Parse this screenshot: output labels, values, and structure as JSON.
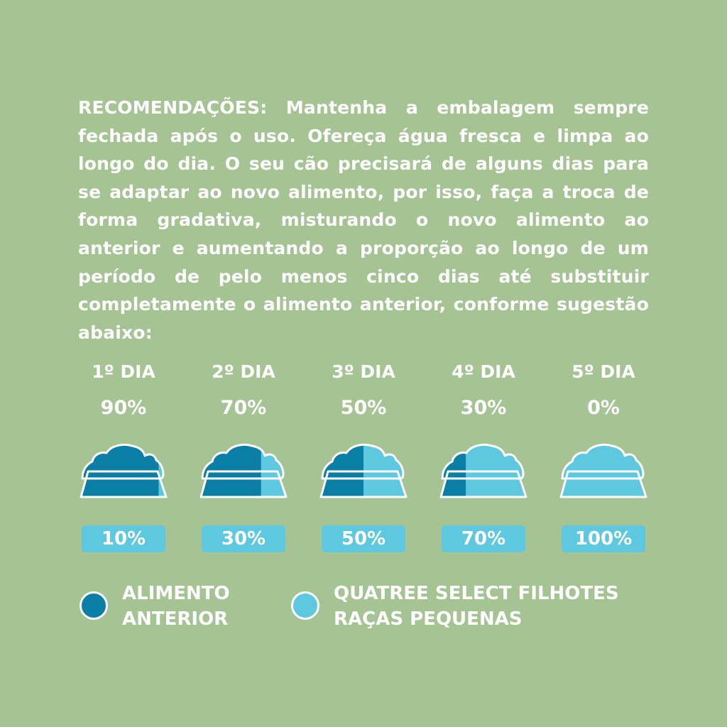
{
  "intro_text": "RECOMENDAÇÕES: Mantenha a embalagem sempre fechada após o uso. Ofereça água fresca e limpa ao longo do dia. O seu cão precisará de alguns dias para se adaptar ao novo alimento, por isso, faça a troca de forma gradativa, misturando o novo alimento ao anterior e aumentando a proporção ao longo de um período de pelo menos cinco dias até substituir completamente o alimento anterior, conforme sugestão abaixo:",
  "colors": {
    "background": "#a6c394",
    "previous_food": "#0b7ea6",
    "new_food": "#5ec8e0",
    "outline": "#ffffff"
  },
  "days": [
    {
      "label": "1º DIA",
      "previous_pct": "90%",
      "new_pct": "10%",
      "new_fraction": 0.1
    },
    {
      "label": "2º DIA",
      "previous_pct": "70%",
      "new_pct": "30%",
      "new_fraction": 0.3
    },
    {
      "label": "3º DIA",
      "previous_pct": "50%",
      "new_pct": "50%",
      "new_fraction": 0.5
    },
    {
      "label": "4º DIA",
      "previous_pct": "30%",
      "new_pct": "70%",
      "new_fraction": 0.7
    },
    {
      "label": "5º DIA",
      "previous_pct": "0%",
      "new_pct": "100%",
      "new_fraction": 1.0
    }
  ],
  "legend": {
    "previous": {
      "line1": "ALIMENTO",
      "line2": "ANTERIOR",
      "icon": "circle-dark-blue"
    },
    "new": {
      "line1": "QUATREE SELECT FILHOTES",
      "line2": "RAÇAS PEQUENAS",
      "icon": "circle-light-blue"
    }
  }
}
